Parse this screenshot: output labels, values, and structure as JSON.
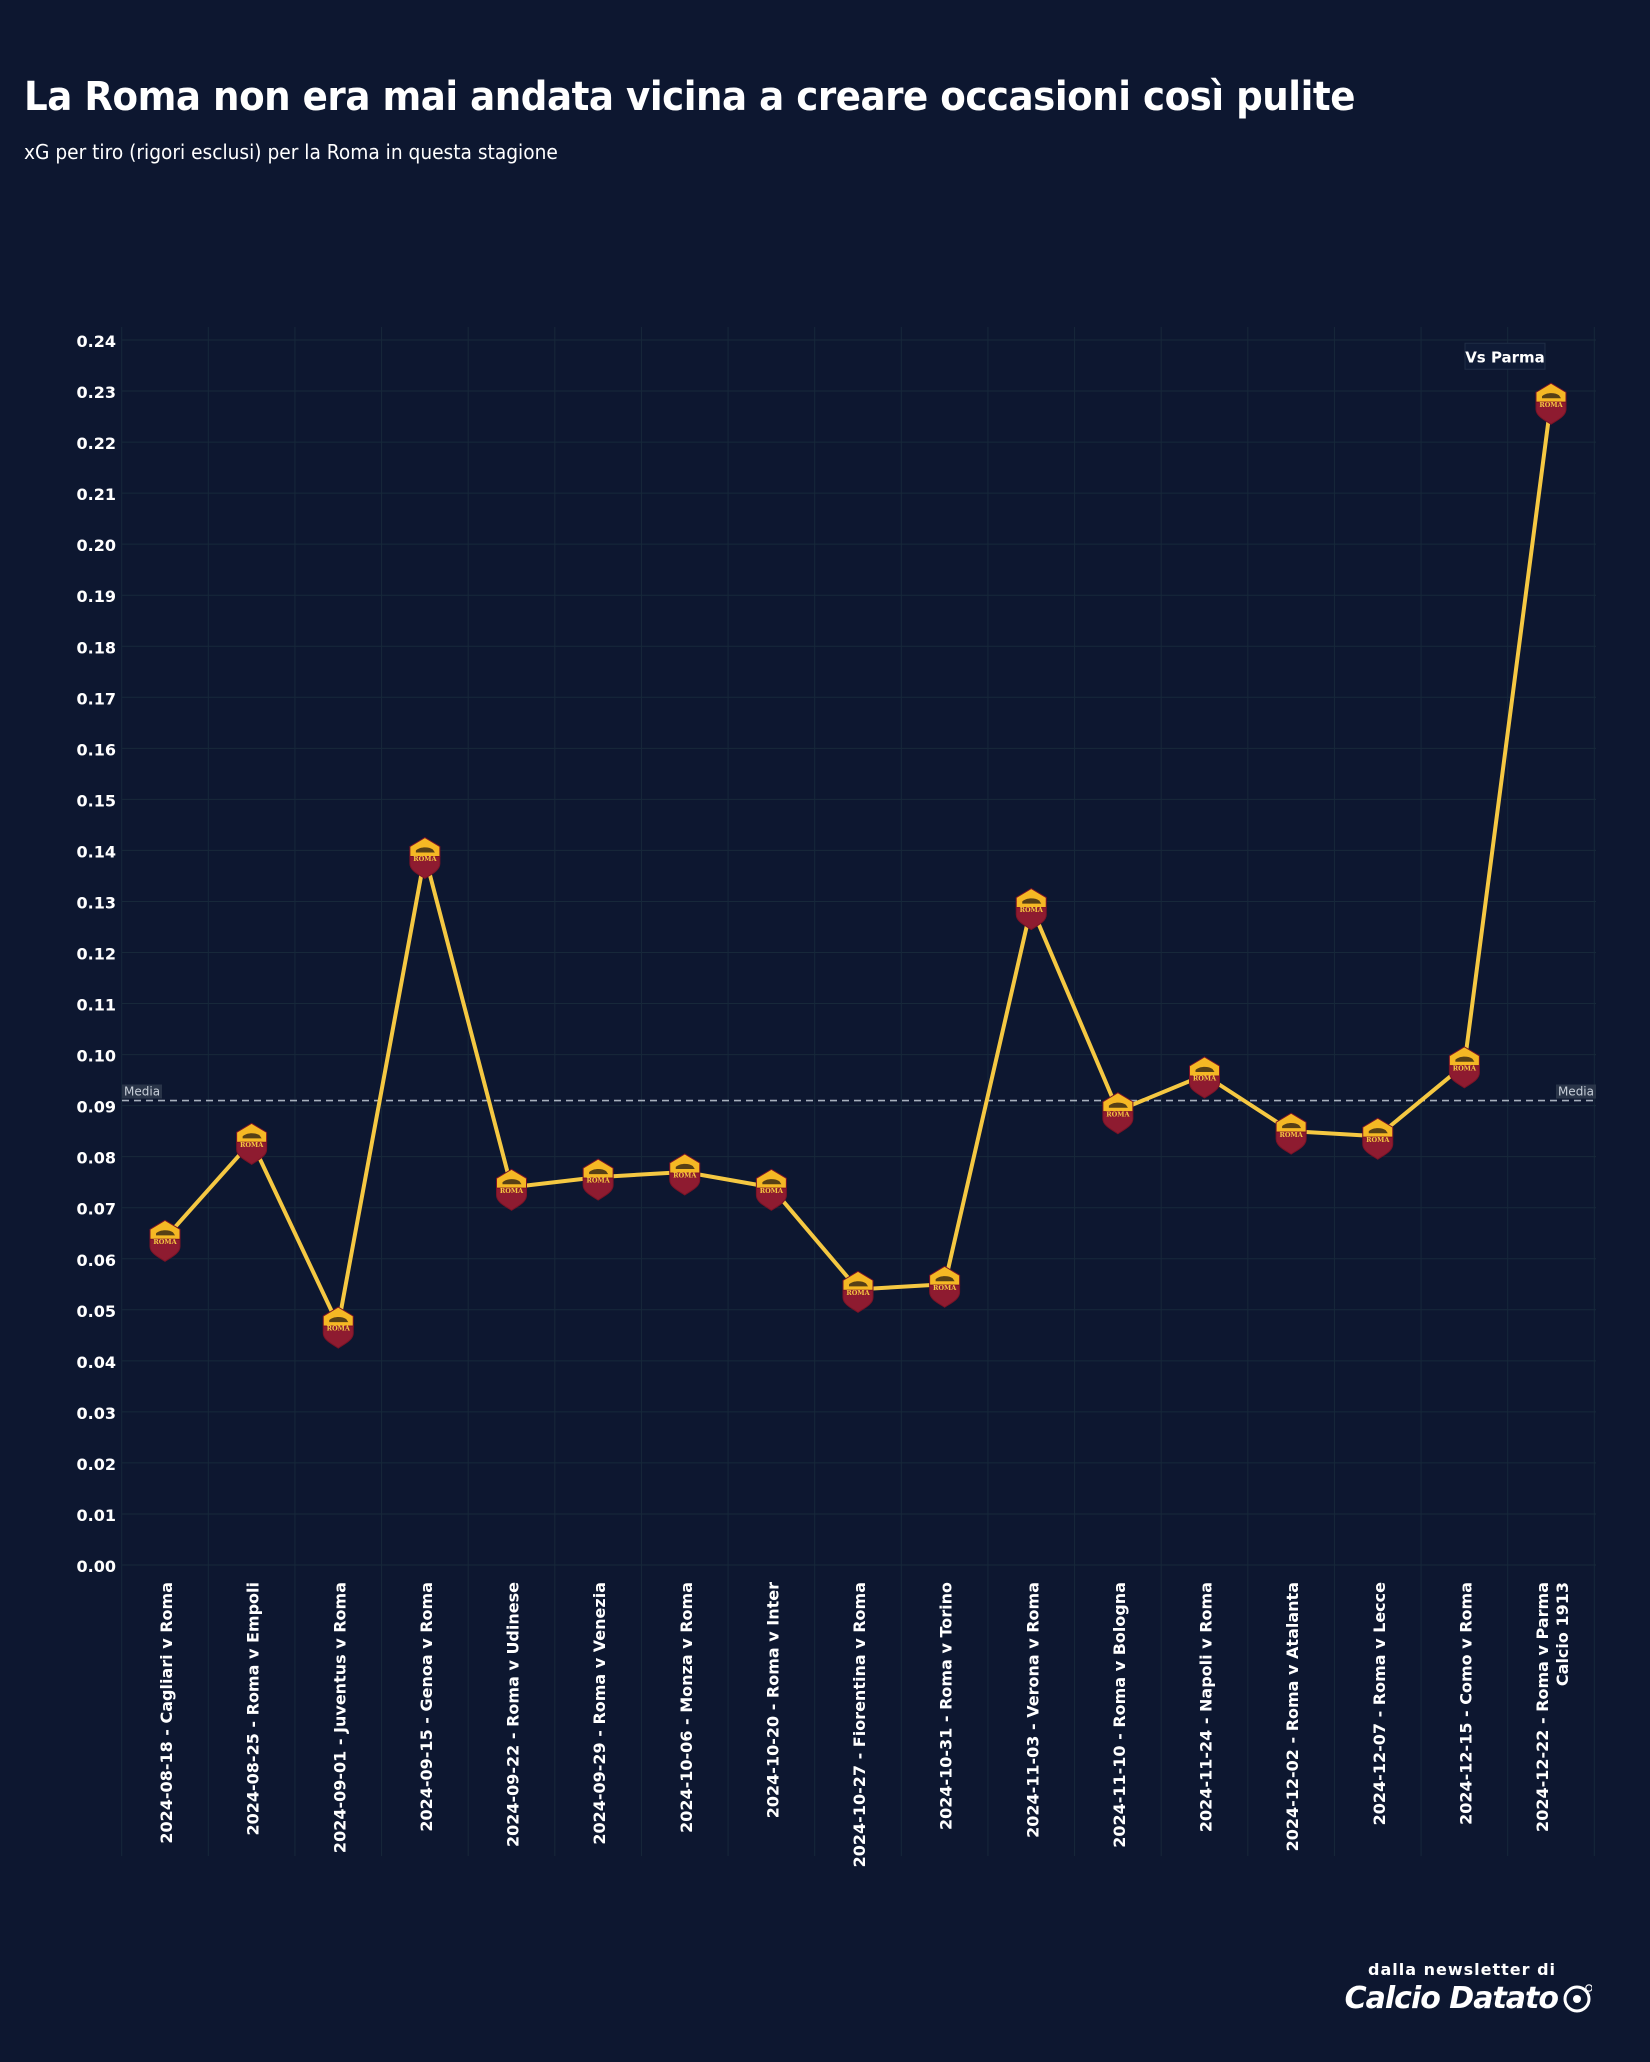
{
  "header": {
    "title": "La Roma non era mai andata vicina a creare occasioni così pulite",
    "subtitle": "xG per tiro (rigori esclusi) per la Roma in questa stagione"
  },
  "chart_data": {
    "type": "line",
    "title": "La Roma non era mai andata vicina a creare occasioni così pulite",
    "subtitle": "xG per tiro (rigori esclusi) per la Roma in questa stagione",
    "xlabel": "",
    "ylabel": "",
    "ylim": [
      0,
      0.24
    ],
    "yticks": [
      "0.00",
      "0.01",
      "0.02",
      "0.03",
      "0.04",
      "0.05",
      "0.06",
      "0.07",
      "0.08",
      "0.09",
      "0.10",
      "0.11",
      "0.12",
      "0.13",
      "0.14",
      "0.15",
      "0.16",
      "0.17",
      "0.18",
      "0.19",
      "0.20",
      "0.21",
      "0.22",
      "0.23",
      "0.24"
    ],
    "grid": true,
    "categories": [
      "2024-08-18 - Cagliari v Roma",
      "2024-08-25 - Roma v Empoli",
      "2024-09-01 - Juventus v Roma",
      "2024-09-15 - Genoa v Roma",
      "2024-09-22 - Roma v Udinese",
      "2024-09-29 - Roma v Venezia",
      "2024-10-06 - Monza v Roma",
      "2024-10-20 - Roma v Inter",
      "2024-10-27 - Fiorentina v Roma",
      "2024-10-31 - Roma v Torino",
      "2024-11-03 - Verona v Roma",
      "2024-11-10 - Roma v Bologna",
      "2024-11-24 - Napoli v Roma",
      "2024-12-02 - Roma v Atalanta",
      "2024-12-07 - Roma v Lecce",
      "2024-12-15 - Como v Roma",
      "2024-12-22 - Roma v Parma\nCalcio 1913"
    ],
    "series": [
      {
        "values": [
          0.064,
          0.083,
          0.047,
          0.139,
          0.074,
          0.076,
          0.077,
          0.074,
          0.054,
          0.055,
          0.129,
          0.089,
          0.096,
          0.085,
          0.084,
          0.098,
          0.228
        ],
        "color": "#f5c842",
        "marker": "as-roma-crest-icon"
      }
    ],
    "reference_line": {
      "label": "Media",
      "value": 0.091,
      "style": "dashed"
    },
    "annotations": [
      {
        "text": "Vs Parma",
        "category_index": 16
      }
    ]
  },
  "branding": {
    "tagline": "dalla newsletter di",
    "name": "Calcio Datato"
  },
  "colors": {
    "background": "#0d1730",
    "line": "#f5c842",
    "grid": "#17283a",
    "text": "#ffffff",
    "reference_line": "#a7b0bd",
    "crest_gold": "#f5b824",
    "crest_red": "#8e1b30"
  }
}
